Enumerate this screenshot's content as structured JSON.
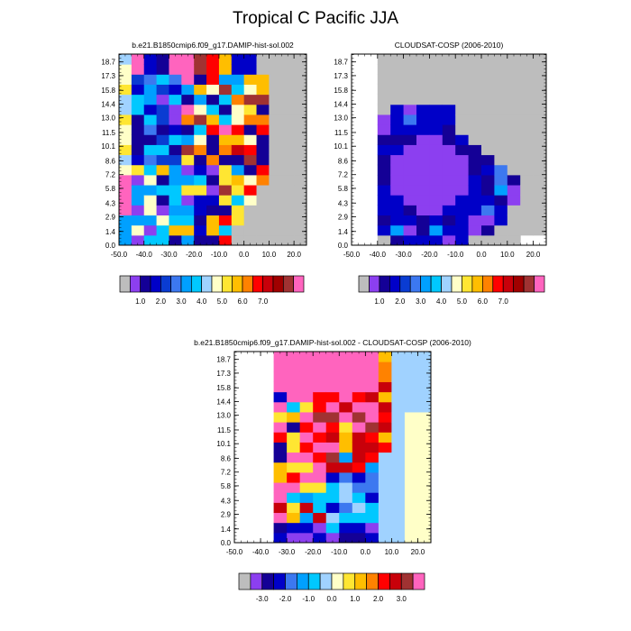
{
  "figure": {
    "title": "Tropical C Pacific JJA"
  },
  "colors": {
    "abs_palette": [
      "#bdbdbd",
      "#8c3ff0",
      "#140096",
      "#0000c8",
      "#0a3cd2",
      "#3c78f0",
      "#00a0ff",
      "#00c8ff",
      "#a0d2ff",
      "#ffffc8",
      "#ffe632",
      "#ffbe00",
      "#ff8200",
      "#ff0000",
      "#c8000a",
      "#a00000",
      "#a03232",
      "#ff64be"
    ],
    "diff_palette": [
      "#bdbdbd",
      "#8c3ff0",
      "#140096",
      "#0000c8",
      "#3c78f0",
      "#00a0ff",
      "#00c8ff",
      "#a0d2ff",
      "#ffffc8",
      "#ffe632",
      "#ffbe00",
      "#ff8200",
      "#ff0000",
      "#c8000a",
      "#a03232",
      "#ff64be"
    ]
  },
  "chart_data": [
    {
      "type": "heatmap",
      "title": "b.e21.B1850cmip6.f09_g17.DAMIP-hist-sol.002",
      "x_ticks": [
        "-50.0",
        "-40.0",
        "-30.0",
        "-20.0",
        "-10.0",
        "0.0",
        "10.0",
        "20.0"
      ],
      "y_ticks": [
        "0.0",
        "1.4",
        "2.9",
        "4.3",
        "5.8",
        "7.2",
        "8.6",
        "10.1",
        "11.5",
        "13.0",
        "14.4",
        "15.8",
        "17.3",
        "18.7"
      ],
      "xlim": [
        -50,
        25
      ],
      "ylim": [
        0,
        19.5
      ],
      "x_cells": 15,
      "y_cells": 19,
      "mask": "left-sparse",
      "colorbar_labels": [
        "1.0",
        "2.0",
        "3.0",
        "4.0",
        "5.0",
        "6.0",
        "7.0"
      ]
    },
    {
      "type": "heatmap",
      "title": "CLOUDSAT-COSP (2006-2010)",
      "x_ticks": [
        "-50.0",
        "-40.0",
        "-30.0",
        "-20.0",
        "-10.0",
        "0.0",
        "10.0",
        "20.0"
      ],
      "y_ticks": [
        "0.0",
        "1.4",
        "2.9",
        "4.3",
        "5.8",
        "7.2",
        "8.6",
        "10.1",
        "11.5",
        "13.0",
        "14.4",
        "15.8",
        "17.3",
        "18.7"
      ],
      "xlim": [
        -50,
        25
      ],
      "ylim": [
        0,
        19.5
      ],
      "x_cells": 15,
      "y_cells": 19,
      "mask": "obs",
      "colorbar_labels": [
        "1.0",
        "2.0",
        "3.0",
        "4.0",
        "5.0",
        "6.0",
        "7.0"
      ]
    },
    {
      "type": "heatmap",
      "title": "b.e21.B1850cmip6.f09_g17.DAMIP-hist-sol.002 - CLOUDSAT-COSP (2006-2010)",
      "x_ticks": [
        "-50.0",
        "-40.0",
        "-30.0",
        "-20.0",
        "-10.0",
        "0.0",
        "10.0",
        "20.0"
      ],
      "y_ticks": [
        "0.0",
        "1.4",
        "2.9",
        "4.3",
        "5.8",
        "7.2",
        "8.6",
        "10.1",
        "11.5",
        "13.0",
        "14.4",
        "15.8",
        "17.3",
        "18.7"
      ],
      "xlim": [
        -50,
        25
      ],
      "ylim": [
        0,
        19.5
      ],
      "x_cells": 15,
      "y_cells": 19,
      "mask": "diff",
      "colorbar_labels": [
        "-3.0",
        "-2.0",
        "-1.0",
        "0.0",
        "1.0",
        "2.0",
        "3.0"
      ]
    }
  ]
}
